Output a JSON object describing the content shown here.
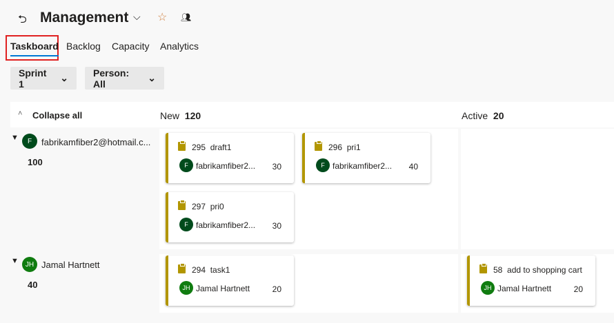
{
  "header": {
    "title": "Management"
  },
  "tabs": [
    "Taskboard",
    "Backlog",
    "Capacity",
    "Analytics"
  ],
  "filters": {
    "sprint": "Sprint 1",
    "person": "Person: All"
  },
  "board": {
    "collapse_label": "Collapse all",
    "columns": [
      {
        "name": "New",
        "count": "120"
      },
      {
        "name": "Active",
        "count": "20"
      }
    ],
    "lanes": [
      {
        "name": "fabrikamfiber2@hotmail.c...",
        "initials": "F",
        "color": "#004b1c",
        "hours": "100"
      },
      {
        "name": "Jamal Hartnett",
        "initials": "JH",
        "color": "#107c10",
        "hours": "40"
      }
    ],
    "cards": [
      {
        "id": "295",
        "title": "draft1",
        "assignee": "fabrikamfiber2...",
        "initials": "F",
        "color": "#004b1c",
        "hours": "30"
      },
      {
        "id": "296",
        "title": "pri1",
        "assignee": "fabrikamfiber2...",
        "initials": "F",
        "color": "#004b1c",
        "hours": "40"
      },
      {
        "id": "297",
        "title": "pri0",
        "assignee": "fabrikamfiber2...",
        "initials": "F",
        "color": "#004b1c",
        "hours": "30"
      },
      {
        "id": "294",
        "title": "task1",
        "assignee": "Jamal Hartnett",
        "initials": "JH",
        "color": "#107c10",
        "hours": "20"
      },
      {
        "id": "58",
        "title": "add to shopping cart",
        "assignee": "Jamal Hartnett",
        "initials": "JH",
        "color": "#107c10",
        "hours": "20"
      }
    ]
  },
  "colors": {
    "accent": "#0078d4",
    "task": "#b29600"
  }
}
